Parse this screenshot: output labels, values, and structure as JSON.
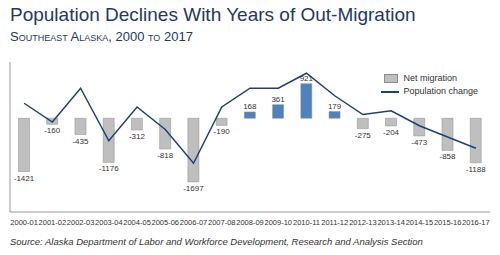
{
  "chart_data": {
    "type": "bar",
    "title": "Population Declines With Years of Out-Migration",
    "subtitle": "Southeast Alaska, 2000 to 2017",
    "source": "Source: Alaska Department of Labor and Workforce Development, Research and Analysis Section",
    "categories": [
      "2000-01",
      "2001-02",
      "2002-03",
      "2003-04",
      "2004-05",
      "2005-06",
      "2006-07",
      "2007-08",
      "2008-09",
      "2009-10",
      "2010-11",
      "2011-12",
      "2012-13",
      "2013-14",
      "2014-15",
      "2015-16",
      "2016-17"
    ],
    "series": [
      {
        "name": "Net migration",
        "type": "bar",
        "color": "#bfbfbf",
        "colors": [
          "#bfbfbf",
          "#bfbfbf",
          "#bfbfbf",
          "#bfbfbf",
          "#bfbfbf",
          "#bfbfbf",
          "#bfbfbf",
          "#bfbfbf",
          "#4f81bd",
          "#4f81bd",
          "#4f81bd",
          "#4f81bd",
          "#bfbfbf",
          "#bfbfbf",
          "#bfbfbf",
          "#bfbfbf",
          "#bfbfbf"
        ],
        "values": [
          -1421,
          -160,
          -435,
          -1176,
          -312,
          -818,
          -1697,
          -190,
          168,
          361,
          921,
          179,
          -275,
          -204,
          -473,
          -858,
          -1188
        ],
        "data_labels": true
      },
      {
        "name": "Population change",
        "type": "line",
        "color": "#1f3f7a",
        "values": [
          400,
          -100,
          800,
          -600,
          300,
          -300,
          -1200,
          300,
          800,
          800,
          1200,
          600,
          100,
          200,
          -200,
          -500,
          -800
        ]
      }
    ],
    "ylim": [
      -2500,
      1500
    ],
    "yticks": [
      -2500,
      -2000,
      -1500,
      -1000,
      -500,
      0,
      500,
      1000,
      1500
    ],
    "tick_labels": "x",
    "legend": "upper right",
    "grid": false
  }
}
